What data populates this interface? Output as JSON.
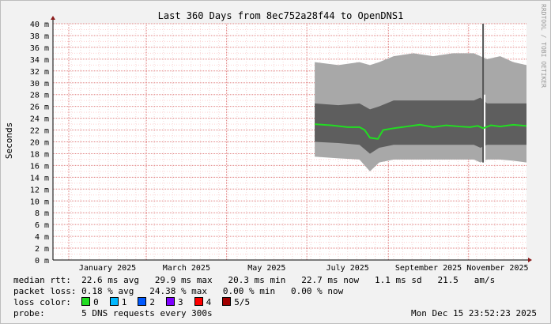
{
  "chart_data": {
    "type": "area",
    "title": "Last 360 Days from 8ec752a28f44 to OpenDNS1",
    "ylabel": "Seconds",
    "watermark": "RRDTOOL / TOBI OETIKER",
    "ylim": [
      0,
      40
    ],
    "y_unit": "m",
    "y_ticks": [
      0,
      2,
      4,
      6,
      8,
      10,
      12,
      14,
      16,
      18,
      20,
      22,
      24,
      26,
      28,
      30,
      32,
      34,
      36,
      38,
      40
    ],
    "x_range": [
      "2024-12-20",
      "2025-12-15"
    ],
    "x_ticks": [
      {
        "label": "January 2025",
        "date": "2025-01-01"
      },
      {
        "label": "March 2025",
        "date": "2025-03-01"
      },
      {
        "label": "May 2025",
        "date": "2025-05-01"
      },
      {
        "label": "July 2025",
        "date": "2025-07-01"
      },
      {
        "label": "September 2025",
        "date": "2025-09-01"
      },
      {
        "label": "November 2025",
        "date": "2025-11-01"
      }
    ],
    "data_start": "2025-07-07",
    "grid": true,
    "series": [
      {
        "name": "smoke_outer",
        "color": "#a8a8a8",
        "x": [
          "2025-07-07",
          "2025-07-25",
          "2025-08-10",
          "2025-08-18",
          "2025-08-25",
          "2025-09-05",
          "2025-09-20",
          "2025-10-05",
          "2025-10-20",
          "2025-11-05",
          "2025-11-10",
          "2025-11-15",
          "2025-11-25",
          "2025-12-05",
          "2025-12-15"
        ],
        "low": [
          17.5,
          17.2,
          17.0,
          15.0,
          16.5,
          17.0,
          17.0,
          17.0,
          17.0,
          17.0,
          16.5,
          17.0,
          17.0,
          16.8,
          16.5
        ],
        "high": [
          33.5,
          33.0,
          33.5,
          33.0,
          33.5,
          34.5,
          35.0,
          34.5,
          35.0,
          35.0,
          34.5,
          34.0,
          34.5,
          33.5,
          33.0
        ]
      },
      {
        "name": "smoke_inner",
        "color": "#5e5e5e",
        "x": [
          "2025-07-07",
          "2025-07-25",
          "2025-08-10",
          "2025-08-18",
          "2025-08-25",
          "2025-09-05",
          "2025-09-20",
          "2025-10-05",
          "2025-10-20",
          "2025-11-05",
          "2025-11-10",
          "2025-11-15",
          "2025-11-25",
          "2025-12-05",
          "2025-12-15"
        ],
        "low": [
          20.0,
          19.8,
          19.5,
          18.0,
          19.0,
          19.5,
          19.5,
          19.5,
          19.5,
          19.5,
          19.0,
          19.5,
          19.5,
          19.5,
          19.5
        ],
        "high": [
          26.5,
          26.2,
          26.5,
          25.5,
          26.0,
          27.0,
          27.0,
          27.0,
          27.0,
          27.0,
          27.5,
          26.5,
          26.5,
          26.5,
          26.5
        ]
      },
      {
        "name": "median",
        "color": "#22dd22",
        "x": [
          "2025-07-07",
          "2025-07-20",
          "2025-08-01",
          "2025-08-10",
          "2025-08-14",
          "2025-08-18",
          "2025-08-24",
          "2025-08-28",
          "2025-09-05",
          "2025-09-15",
          "2025-09-25",
          "2025-10-05",
          "2025-10-15",
          "2025-10-25",
          "2025-11-02",
          "2025-11-08",
          "2025-11-12",
          "2025-11-18",
          "2025-11-25",
          "2025-12-05",
          "2025-12-15"
        ],
        "y": [
          23.0,
          22.8,
          22.5,
          22.5,
          22.0,
          20.7,
          20.5,
          22.0,
          22.3,
          22.6,
          22.9,
          22.5,
          22.8,
          22.6,
          22.5,
          22.7,
          22.3,
          22.8,
          22.6,
          22.9,
          22.7
        ]
      },
      {
        "name": "spike",
        "color": "#ffffff",
        "x": [
          "2025-11-12"
        ],
        "y": [
          40.0
        ]
      }
    ]
  },
  "stats": {
    "median_label": "median rtt:",
    "median_values": "22.6 ms avg   29.9 ms max   20.3 ms min   22.7 ms now   1.1 ms sd   21.5   am/s",
    "loss_label": "packet loss:",
    "loss_values": "0.18 % avg   24.38 % max   0.00 % min   0.00 % now",
    "color_label": "loss color:",
    "loss_colors": [
      {
        "label": "0",
        "color": "#22dd22"
      },
      {
        "label": "1",
        "color": "#00b8ff"
      },
      {
        "label": "2",
        "color": "#0059ff"
      },
      {
        "label": "3",
        "color": "#7e00ff"
      },
      {
        "label": "4",
        "color": "#ff0000"
      },
      {
        "label": "5/5",
        "color": "#a10000"
      }
    ],
    "probe_label": "probe:",
    "probe_value": "5 DNS requests every 300s",
    "timestamp": "Mon Dec 15 23:52:23 2025"
  }
}
